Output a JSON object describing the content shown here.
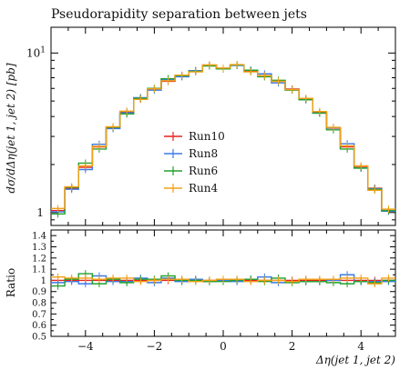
{
  "chart_data": {
    "type": "line",
    "title": "Pseudorapidity separation between jets",
    "xlabel": "Δη(jet 1, jet 2)",
    "ylabel": "dσ/dΔη(jet 1, jet 2) [pb]",
    "ratio_ylabel": "Ratio",
    "x_bin_edges": [
      -5.0,
      -4.6,
      -4.2,
      -3.8,
      -3.4,
      -3.0,
      -2.6,
      -2.2,
      -1.8,
      -1.4,
      -1.0,
      -0.6,
      -0.2,
      0.2,
      0.6,
      1.0,
      1.4,
      1.8,
      2.2,
      2.6,
      3.0,
      3.4,
      3.8,
      4.2,
      4.6,
      5.0
    ],
    "xlim": [
      -5.0,
      5.0
    ],
    "ylim": [
      0.83,
      14.5
    ],
    "yscale": "log",
    "x_ticks": [
      -4,
      -2,
      0,
      2,
      4
    ],
    "y_ticks": [
      {
        "value": 1,
        "label": "1"
      },
      {
        "value": 10,
        "label": "10^1"
      }
    ],
    "ratio_ylim": [
      0.5,
      1.45
    ],
    "ratio_ticks": [
      "0.5",
      "0.6",
      "0.7",
      "0.8",
      "0.9",
      "1",
      "1.1",
      "1.2",
      "1.3",
      "1.4"
    ],
    "legend_position": "center-left",
    "series": [
      {
        "name": "Run10",
        "color": "#e8231f",
        "values": [
          1.03,
          1.42,
          1.92,
          2.58,
          3.38,
          4.25,
          5.15,
          5.95,
          6.65,
          7.2,
          7.7,
          8.4,
          8.0,
          8.4,
          7.7,
          7.2,
          6.65,
          5.95,
          5.15,
          4.25,
          3.38,
          2.58,
          1.92,
          1.42,
          1.03
        ],
        "ratio": [
          1,
          1,
          1,
          1,
          1,
          1,
          1,
          1,
          1,
          1,
          1,
          1,
          1,
          1,
          1,
          1,
          1,
          1,
          1,
          1,
          1,
          1,
          1,
          1,
          1
        ]
      },
      {
        "name": "Run8",
        "color": "#3a7ae8",
        "values": [
          1.01,
          1.4,
          1.86,
          2.68,
          3.36,
          4.22,
          5.25,
          5.85,
          6.8,
          7.1,
          7.75,
          8.35,
          8.02,
          8.35,
          7.8,
          7.4,
          6.5,
          5.9,
          5.1,
          4.2,
          3.4,
          2.7,
          1.9,
          1.41,
          1.02
        ],
        "ratio": [
          0.98,
          0.99,
          0.97,
          1.04,
          0.99,
          0.99,
          1.02,
          0.98,
          1.02,
          0.99,
          1.01,
          0.99,
          1.0,
          0.99,
          1.01,
          1.03,
          0.98,
          0.99,
          0.99,
          0.99,
          1.0,
          1.05,
          0.99,
          0.99,
          0.99
        ]
      },
      {
        "name": "Run6",
        "color": "#22a12e",
        "values": [
          0.98,
          1.44,
          2.04,
          2.5,
          3.42,
          4.15,
          5.2,
          6.0,
          6.9,
          7.2,
          7.68,
          8.3,
          7.95,
          8.4,
          7.8,
          7.1,
          6.75,
          5.85,
          5.1,
          4.2,
          3.3,
          2.5,
          1.9,
          1.4,
          1.03
        ],
        "ratio": [
          0.95,
          1.01,
          1.06,
          0.97,
          1.01,
          0.98,
          1.01,
          1.01,
          1.04,
          1.0,
          1.0,
          0.99,
          0.99,
          1.0,
          1.01,
          0.99,
          1.02,
          0.98,
          0.99,
          0.99,
          0.98,
          0.97,
          0.99,
          0.98,
          1.0
        ]
      },
      {
        "name": "Run4",
        "color": "#f2a015",
        "values": [
          1.06,
          1.45,
          1.96,
          2.6,
          3.45,
          4.32,
          5.12,
          5.96,
          6.7,
          7.26,
          7.62,
          8.42,
          8.05,
          8.46,
          7.62,
          7.2,
          6.65,
          5.9,
          5.2,
          4.3,
          3.42,
          2.62,
          1.96,
          1.38,
          1.05
        ],
        "ratio": [
          1.03,
          1.02,
          1.02,
          1.01,
          1.02,
          1.02,
          0.99,
          1.0,
          1.01,
          1.01,
          0.99,
          1.0,
          1.01,
          1.01,
          0.99,
          1.0,
          1.0,
          0.99,
          1.01,
          1.01,
          1.01,
          1.02,
          1.02,
          0.97,
          1.02
        ]
      }
    ]
  }
}
